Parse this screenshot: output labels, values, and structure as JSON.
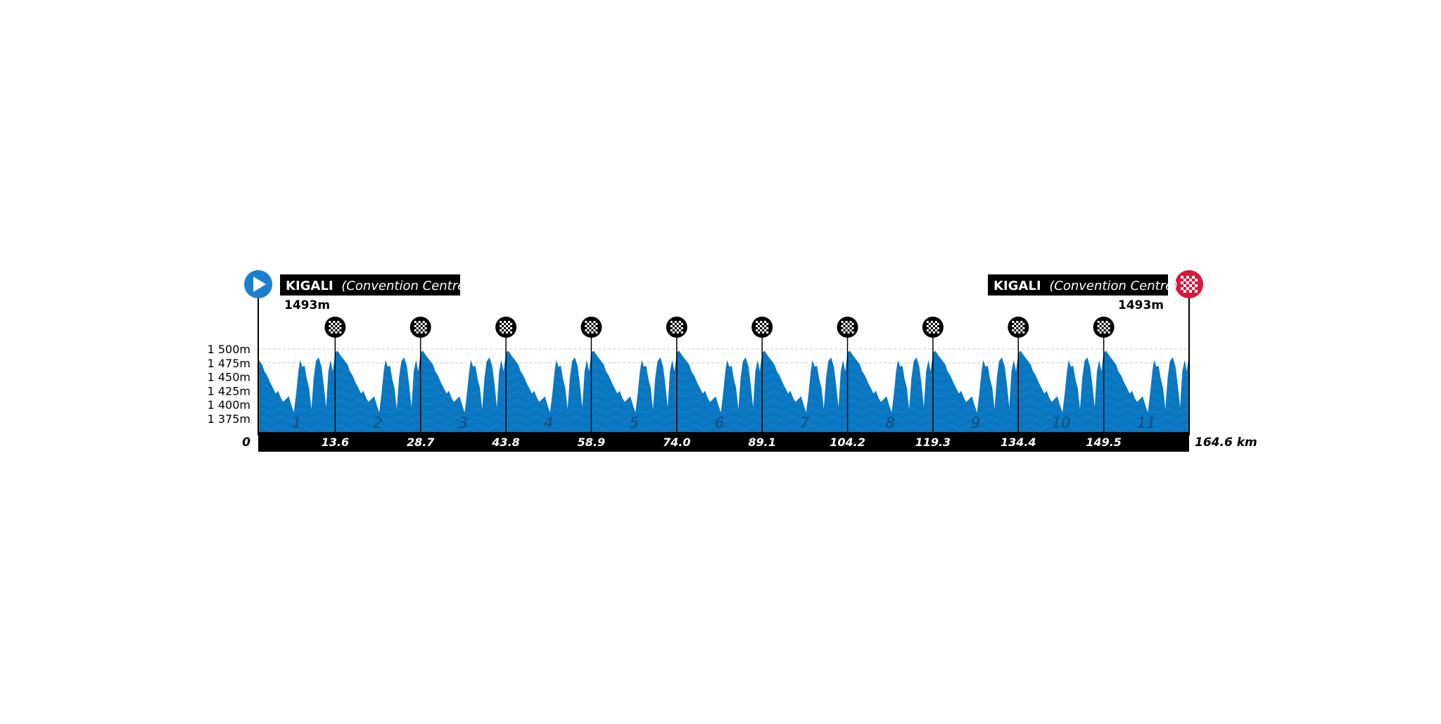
{
  "chart_data": {
    "type": "area",
    "title": "",
    "xlabel": "",
    "ylabel": "",
    "x_unit": "km",
    "xlim": [
      0,
      164.6
    ],
    "ylim": [
      1370,
      1510
    ],
    "colors": {
      "profile": "#0a76c0",
      "profile_texture": "#0f82cf",
      "axis_band": "#000000",
      "start_marker": "#1a7fd1",
      "finish_marker": "#d7193c",
      "gridline": "#c8c8c8"
    },
    "y_ticks": [
      {
        "value": 1375,
        "label": "1 375m"
      },
      {
        "value": 1400,
        "label": "1 400m"
      },
      {
        "value": 1425,
        "label": "1 425m"
      },
      {
        "value": 1450,
        "label": "1 450m"
      },
      {
        "value": 1475,
        "label": "1 475m"
      },
      {
        "value": 1500,
        "label": "1 500m"
      }
    ],
    "x_start_label": "0",
    "x_end_label": "164.6 km",
    "lap_markers": [
      {
        "km": 13.6,
        "label": "13.6"
      },
      {
        "km": 28.7,
        "label": "28.7"
      },
      {
        "km": 43.8,
        "label": "43.8"
      },
      {
        "km": 58.9,
        "label": "58.9"
      },
      {
        "km": 74.0,
        "label": "74.0"
      },
      {
        "km": 89.1,
        "label": "89.1"
      },
      {
        "km": 104.2,
        "label": "104.2"
      },
      {
        "km": 119.3,
        "label": "119.3"
      },
      {
        "km": 134.4,
        "label": "134.4"
      },
      {
        "km": 149.5,
        "label": "149.5"
      }
    ],
    "lap_labels": [
      "1",
      "2",
      "3",
      "4",
      "5",
      "6",
      "7",
      "8",
      "9",
      "10",
      "11"
    ],
    "lap_distance_km": 15.1,
    "start_offset_km": 13.6,
    "lap_profile": {
      "km": [
        0,
        0.4,
        1.0,
        1.6,
        2.2,
        2.6,
        3.1,
        3.6,
        4.1,
        4.6,
        5.0,
        5.5,
        5.9,
        6.4,
        6.9,
        7.4,
        7.8,
        8.2,
        8.6,
        8.9,
        9.3,
        9.7,
        10.1,
        10.5,
        10.9,
        11.3,
        11.7,
        12.2,
        12.7,
        13.1,
        13.5,
        13.9,
        14.3,
        14.7,
        15.1
      ],
      "elevation": [
        1493,
        1497,
        1488,
        1480,
        1472,
        1460,
        1452,
        1440,
        1430,
        1420,
        1425,
        1412,
        1405,
        1410,
        1415,
        1398,
        1386,
        1420,
        1460,
        1480,
        1468,
        1470,
        1446,
        1430,
        1392,
        1448,
        1478,
        1485,
        1468,
        1435,
        1395,
        1460,
        1480,
        1460,
        1493
      ]
    },
    "start": {
      "name": "KIGALI",
      "detail": "(Convention Centre)",
      "elevation_label": "1493m"
    },
    "finish": {
      "name": "KIGALI",
      "detail": "(Convention Centre)",
      "elevation_label": "1493m"
    }
  }
}
